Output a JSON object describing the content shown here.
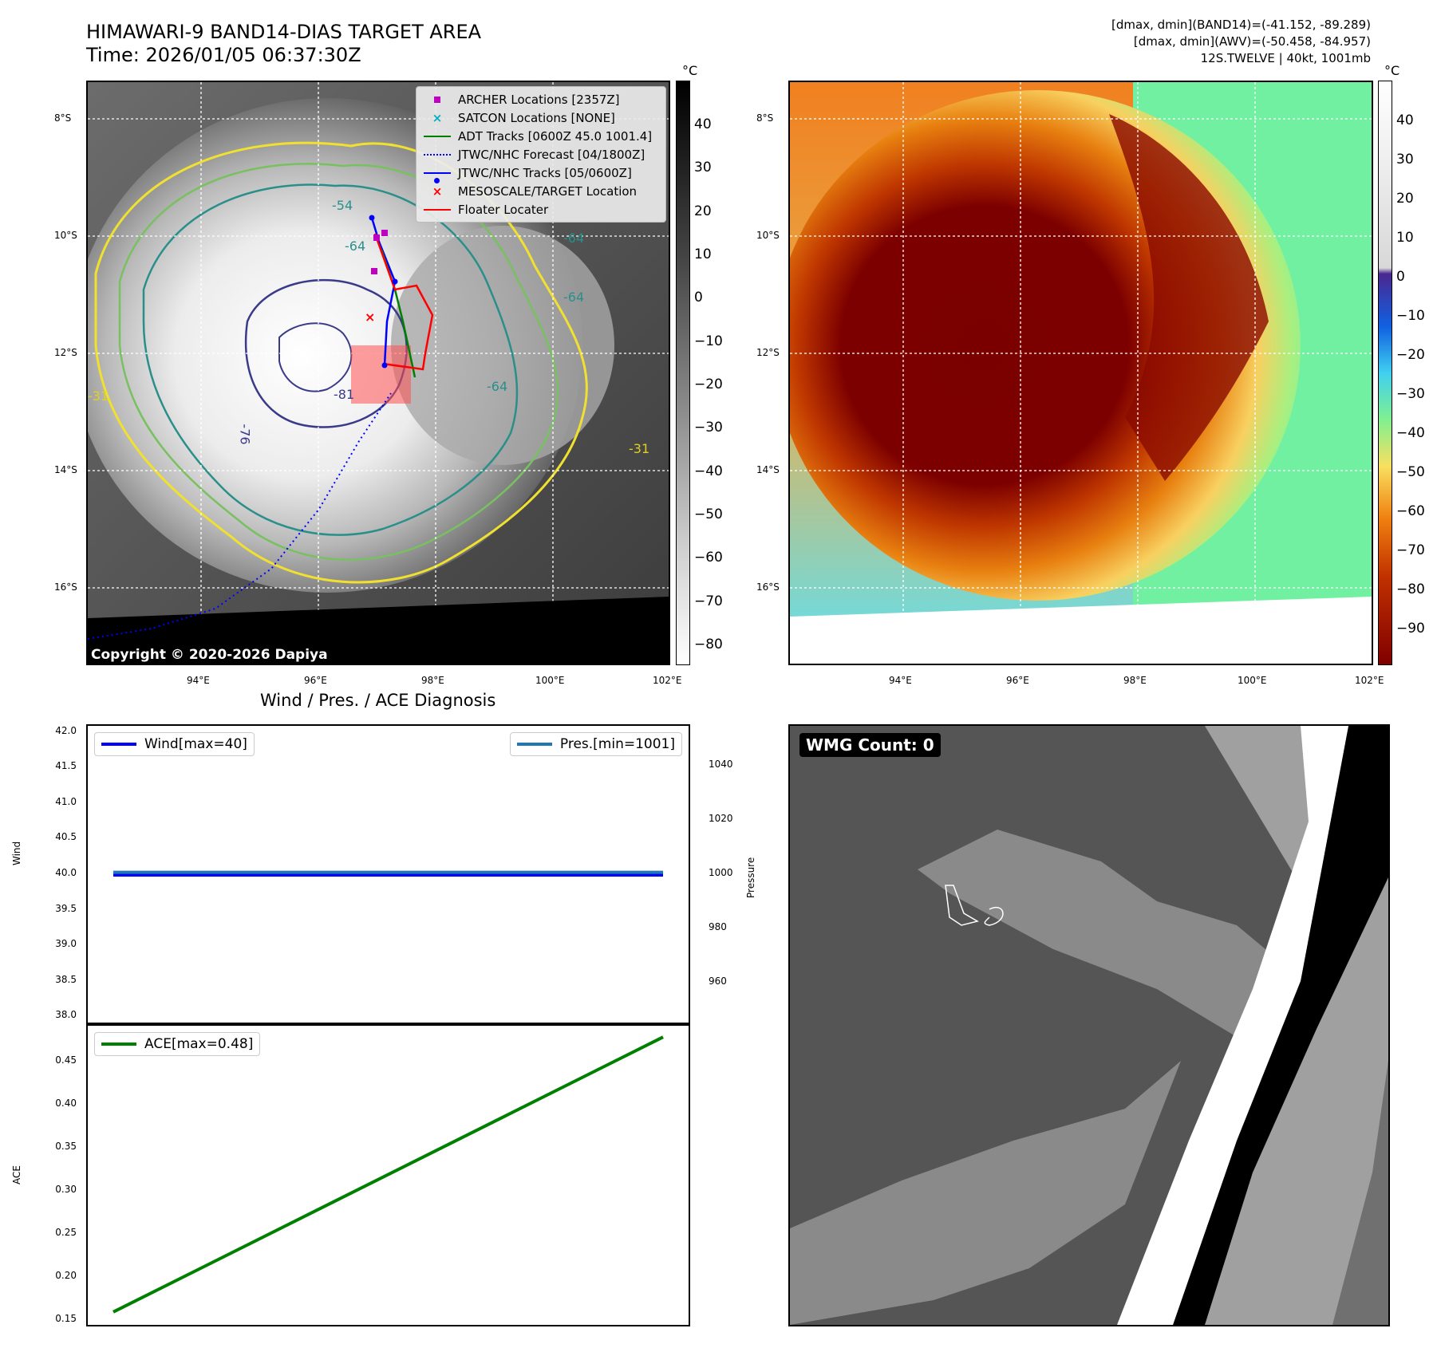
{
  "header": {
    "title_line1": "HIMAWARI-9 BAND14-DIAS TARGET AREA",
    "title_line2": "Time: 2026/01/05 06:37:30Z",
    "info_line1": "[dmax, dmin](BAND14)=(-41.152, -89.289)",
    "info_line2": "[dmax, dmin](AWV)=(-50.458, -84.957)",
    "info_line3": "12S.TWELVE | 40kt, 1001mb"
  },
  "map": {
    "lat_ticks": [
      "8°S",
      "10°S",
      "12°S",
      "14°S",
      "16°S"
    ],
    "lon_ticks": [
      "94°E",
      "96°E",
      "98°E",
      "100°E",
      "102°E"
    ],
    "copyright": "Copyright © 2020-2026 Dapiya",
    "contour_labels": [
      "-54",
      "-64",
      "-64",
      "-64",
      "-81",
      "-76",
      "-31",
      "-31",
      "-64"
    ],
    "legend": [
      {
        "label": "ARCHER Locations [2357Z]",
        "color": "#c000c0",
        "symbol": "square"
      },
      {
        "label": "SATCON Locations [NONE]",
        "color": "#00b0c0",
        "symbol": "x"
      },
      {
        "label": "ADT Tracks [0600Z 45.0 1001.4]",
        "color": "#008000",
        "symbol": "line"
      },
      {
        "label": "JTWC/NHC Forecast [04/1800Z]",
        "color": "#0000ff",
        "symbol": "dotted"
      },
      {
        "label": "JTWC/NHC Tracks [05/0600Z]",
        "color": "#0000ff",
        "symbol": "line-dot"
      },
      {
        "label": "MESOSCALE/TARGET Location",
        "color": "#ff0000",
        "symbol": "x"
      },
      {
        "label": "Floater Locater",
        "color": "#ff0000",
        "symbol": "line"
      }
    ]
  },
  "colorbar_left": {
    "unit": "°C",
    "ticks": [
      "40",
      "30",
      "20",
      "10",
      "0",
      "−10",
      "−20",
      "−30",
      "−40",
      "−50",
      "−60",
      "−70",
      "−80"
    ]
  },
  "colorbar_right": {
    "unit": "°C",
    "ticks": [
      "40",
      "30",
      "20",
      "10",
      "0",
      "−10",
      "−20",
      "−30",
      "−40",
      "−50",
      "−60",
      "−70",
      "−80",
      "−90"
    ]
  },
  "chart_data": [
    {
      "type": "line",
      "title": "Wind / Pres. / ACE Diagnosis",
      "xlabel": "",
      "ylabel": "Wind",
      "y2label": "Pressure",
      "ylim": [
        37.9,
        42.1
      ],
      "y2lim": [
        945,
        1055
      ],
      "yticks": [
        "42.0",
        "41.5",
        "41.0",
        "40.5",
        "40.0",
        "39.5",
        "39.0",
        "38.5",
        "38.0"
      ],
      "y2ticks": [
        "1040",
        "1020",
        "1000",
        "980",
        "960"
      ],
      "x": [
        0,
        1
      ],
      "series": [
        {
          "name": "Wind[max=40]",
          "axis": "left",
          "color": "#0000ff",
          "values": [
            40,
            40
          ]
        },
        {
          "name": "Pres.[min=1001]",
          "axis": "right",
          "color": "#1f77b4",
          "values": [
            1001,
            1001
          ]
        }
      ]
    },
    {
      "type": "line",
      "xlabel": "",
      "ylabel": "ACE",
      "ylim": [
        0.145,
        0.495
      ],
      "yticks": [
        "0.45",
        "0.40",
        "0.35",
        "0.30",
        "0.25",
        "0.20",
        "0.15"
      ],
      "x": [
        0,
        1
      ],
      "series": [
        {
          "name": "ACE[max=0.48]",
          "color": "#008000",
          "values": [
            0.16,
            0.48
          ]
        }
      ]
    }
  ],
  "wmg": {
    "label": "WMG Count: 0"
  }
}
